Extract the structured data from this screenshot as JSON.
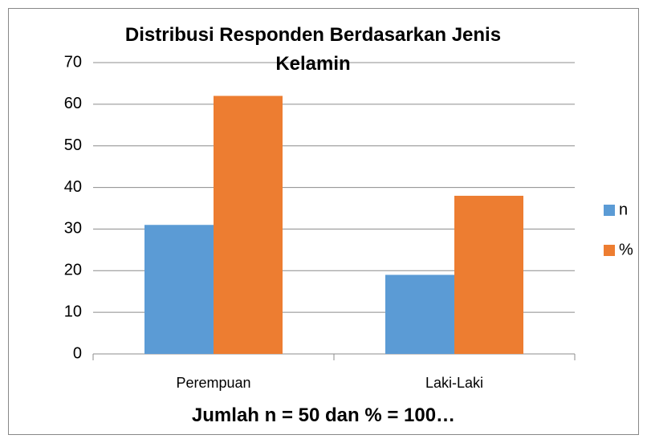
{
  "chart_data": {
    "type": "bar",
    "title": "Distribusi Responden Berdasarkan Jenis Kelamin",
    "annotation": "Jumlah n = 50 dan % = 100…",
    "categories": [
      "Perempuan",
      "Laki-Laki"
    ],
    "series": [
      {
        "name": "n",
        "color": "#5b9bd5",
        "values": [
          31,
          19
        ]
      },
      {
        "name": "%",
        "color": "#ed7d31",
        "values": [
          62,
          38
        ]
      }
    ],
    "ylim": [
      0,
      70
    ],
    "yticks": [
      0,
      10,
      20,
      30,
      40,
      50,
      60,
      70
    ],
    "grid": true,
    "legend": "right"
  }
}
